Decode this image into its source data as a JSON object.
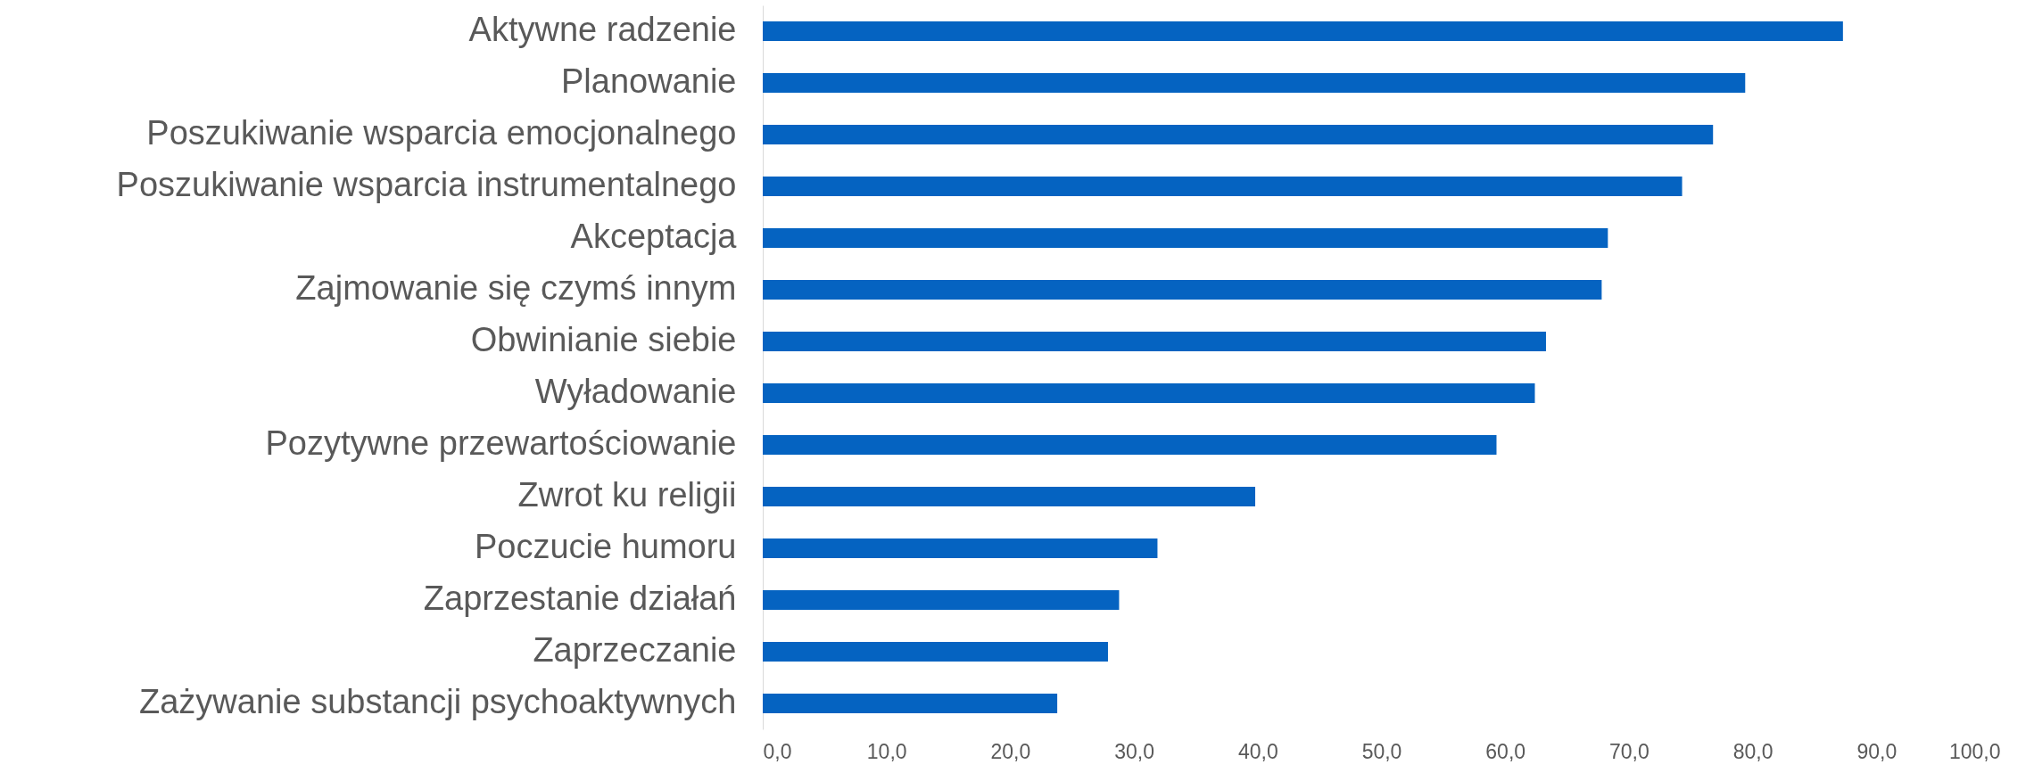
{
  "chart_data": {
    "type": "bar",
    "orientation": "horizontal",
    "categories": [
      "Aktywne radzenie",
      "Planowanie",
      "Poszukiwanie wsparcia emocjonalnego",
      "Poszukiwanie wsparcia instrumentalnego",
      "Akceptacja",
      "Zajmowanie się czymś innym",
      "Obwinianie siebie",
      "Wyładowanie",
      "Pozytywne przewartościowanie",
      "Zwrot ku religii",
      "Poczucie humoru",
      "Zaprzestanie działań",
      "Zaprzeczanie",
      "Zażywanie substancji psychoaktywnych"
    ],
    "values": [
      87.3,
      79.4,
      76.8,
      74.3,
      68.3,
      67.8,
      63.3,
      62.4,
      59.3,
      39.8,
      31.9,
      28.8,
      27.9,
      23.8
    ],
    "color": "#0563c1",
    "xlim": [
      0,
      100
    ],
    "xticks": [
      {
        "value": 0,
        "label": "0,0"
      },
      {
        "value": 10,
        "label": "10,0"
      },
      {
        "value": 20,
        "label": "20,0"
      },
      {
        "value": 30,
        "label": "30,0"
      },
      {
        "value": 40,
        "label": "40,0"
      },
      {
        "value": 50,
        "label": "50,0"
      },
      {
        "value": 60,
        "label": "60,0"
      },
      {
        "value": 70,
        "label": "70,0"
      },
      {
        "value": 80,
        "label": "80,0"
      },
      {
        "value": 90,
        "label": "90,0"
      },
      {
        "value": 100,
        "label": "100,0"
      }
    ],
    "grid": false
  }
}
